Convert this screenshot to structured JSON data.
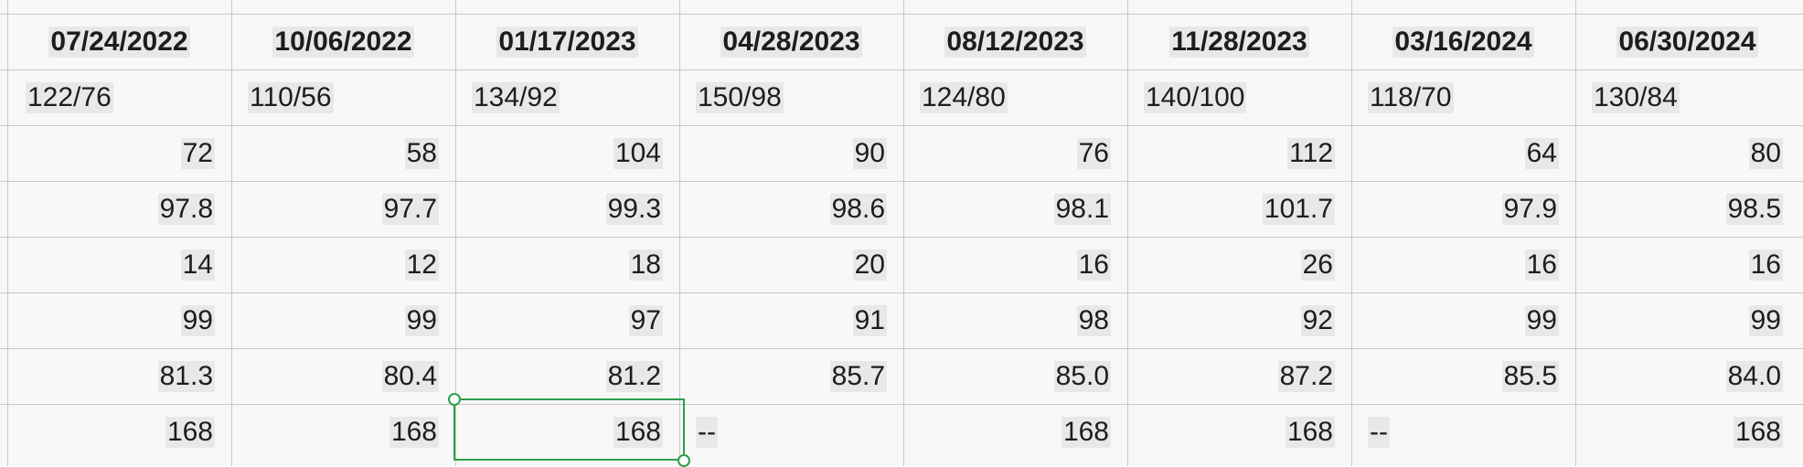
{
  "sheet": {
    "headers": [
      "07/24/2022",
      "10/06/2022",
      "01/17/2023",
      "04/28/2023",
      "08/12/2023",
      "11/28/2023",
      "03/16/2024",
      "06/30/2024"
    ],
    "rows": [
      {
        "align": "left",
        "cells": [
          "122/76",
          "110/56",
          "134/92",
          "150/98",
          "124/80",
          "140/100",
          "118/70",
          "130/84"
        ]
      },
      {
        "align": "right",
        "cells": [
          "72",
          "58",
          "104",
          "90",
          "76",
          "112",
          "64",
          "80"
        ]
      },
      {
        "align": "right",
        "cells": [
          "97.8",
          "97.7",
          "99.3",
          "98.6",
          "98.1",
          "101.7",
          "97.9",
          "98.5"
        ]
      },
      {
        "align": "right",
        "cells": [
          "14",
          "12",
          "18",
          "20",
          "16",
          "26",
          "16",
          "16"
        ]
      },
      {
        "align": "right",
        "cells": [
          "99",
          "99",
          "97",
          "91",
          "98",
          "92",
          "99",
          "99"
        ]
      },
      {
        "align": "right",
        "cells": [
          "81.3",
          "80.4",
          "81.2",
          "85.7",
          "85.0",
          "87.2",
          "85.5",
          "84.0"
        ]
      },
      {
        "align": "mixed",
        "cells": [
          "168",
          "168",
          "168",
          "--",
          "168",
          "168",
          "--",
          "168"
        ]
      }
    ],
    "selected_cell": {
      "row": 6,
      "col": 2
    },
    "colors": {
      "grid": "#c9c9c9",
      "cell_bg": "#f8f8f8",
      "text_highlight": "#e8e8e8",
      "selection": "#2e9e4a"
    }
  }
}
